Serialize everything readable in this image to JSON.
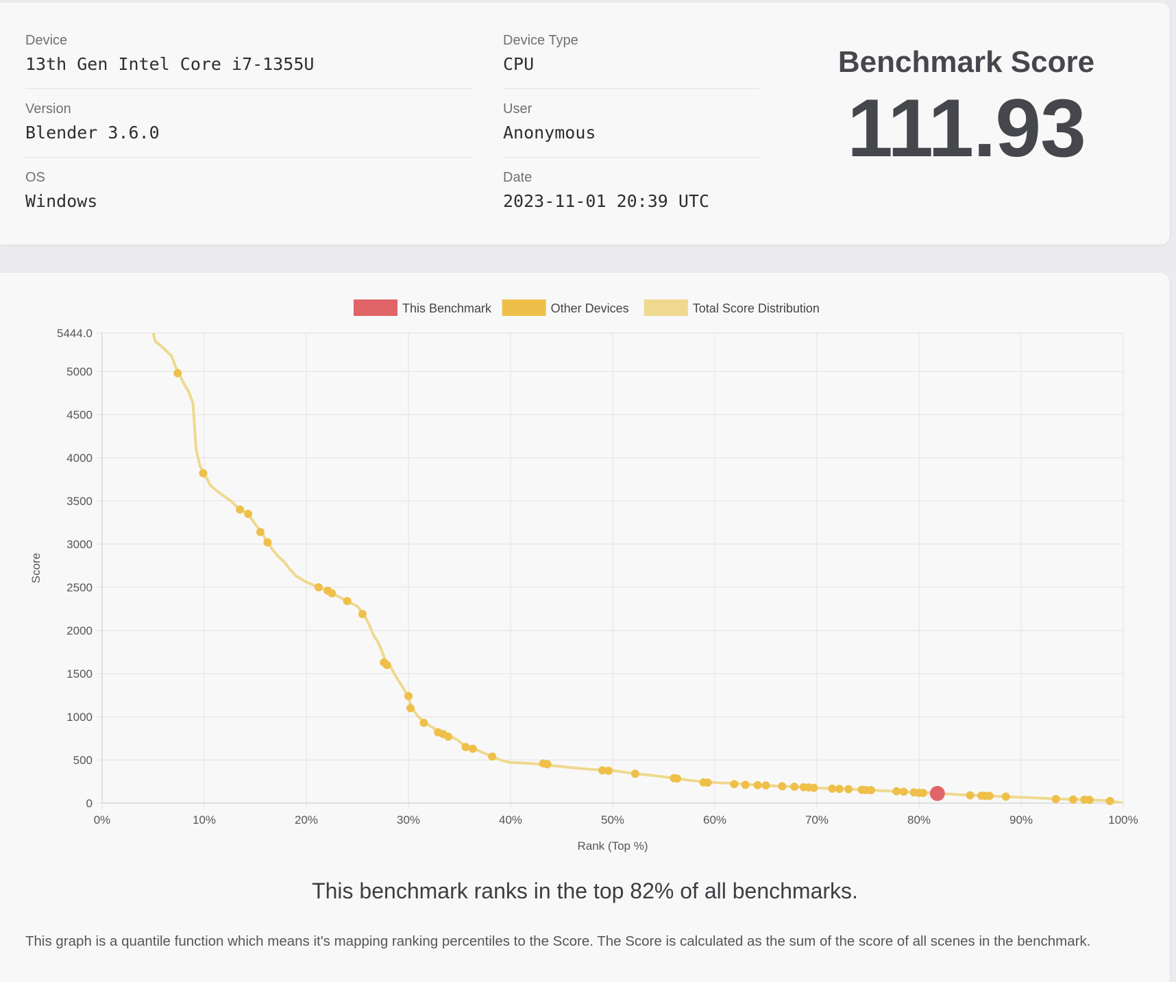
{
  "info": {
    "device_label": "Device",
    "device_value": "13th Gen Intel Core i7-1355U",
    "version_label": "Version",
    "version_value": "Blender 3.6.0",
    "os_label": "OS",
    "os_value": "Windows",
    "device_type_label": "Device Type",
    "device_type_value": "CPU",
    "user_label": "User",
    "user_value": "Anonymous",
    "date_label": "Date",
    "date_value": "2023-11-01 20:39 UTC"
  },
  "score": {
    "title": "Benchmark Score",
    "value": "111.93"
  },
  "summary": {
    "rank_sentence": "This benchmark ranks in the top 82% of all benchmarks.",
    "footnote": "This graph is a quantile function which means it's mapping ranking percentiles to the Score. The Score is calculated as the sum of the score of all scenes in the benchmark."
  },
  "colors": {
    "this_benchmark": "#e06468",
    "other_devices": "#eec04a",
    "distribution": "#efd98f",
    "grid": "#e2e2e2",
    "axis_text": "#555555"
  },
  "chart_data": {
    "type": "scatter",
    "xlabel": "Rank (Top %)",
    "ylabel": "Score",
    "xlim": [
      0,
      100
    ],
    "ylim": [
      0,
      5444.0
    ],
    "x_ticks": [
      "0%",
      "10%",
      "20%",
      "30%",
      "40%",
      "50%",
      "60%",
      "70%",
      "80%",
      "90%",
      "100%"
    ],
    "y_ticks": [
      "0",
      "500",
      "1000",
      "1500",
      "2000",
      "2500",
      "3000",
      "3500",
      "4000",
      "4500",
      "5000",
      "5444.0"
    ],
    "grid": true,
    "legend_position": "top-center",
    "legend": [
      "This Benchmark",
      "Other Devices",
      "Total Score Distribution"
    ],
    "series": [
      {
        "name": "Total Score Distribution",
        "kind": "line",
        "points": [
          [
            5.0,
            5444
          ],
          [
            5.2,
            5350
          ],
          [
            6.0,
            5270
          ],
          [
            6.8,
            5180
          ],
          [
            7.2,
            5050
          ],
          [
            7.5,
            4980
          ],
          [
            8.0,
            4860
          ],
          [
            8.5,
            4760
          ],
          [
            8.9,
            4630
          ],
          [
            9.2,
            4100
          ],
          [
            9.6,
            3900
          ],
          [
            10.0,
            3820
          ],
          [
            10.6,
            3680
          ],
          [
            11.2,
            3620
          ],
          [
            12.0,
            3550
          ],
          [
            12.6,
            3500
          ],
          [
            13.5,
            3400
          ],
          [
            14.3,
            3350
          ],
          [
            15.0,
            3230
          ],
          [
            15.6,
            3140
          ],
          [
            16.2,
            3020
          ],
          [
            16.8,
            2920
          ],
          [
            17.3,
            2850
          ],
          [
            17.8,
            2800
          ],
          [
            18.3,
            2720
          ],
          [
            19.0,
            2630
          ],
          [
            20.0,
            2560
          ],
          [
            21.2,
            2500
          ],
          [
            22.0,
            2460
          ],
          [
            22.5,
            2430
          ],
          [
            24.0,
            2340
          ],
          [
            25.0,
            2280
          ],
          [
            25.6,
            2190
          ],
          [
            26.1,
            2080
          ],
          [
            26.6,
            1940
          ],
          [
            27.0,
            1870
          ],
          [
            27.4,
            1760
          ],
          [
            27.8,
            1630
          ],
          [
            28.2,
            1590
          ],
          [
            28.7,
            1480
          ],
          [
            29.4,
            1350
          ],
          [
            30.0,
            1230
          ],
          [
            30.3,
            1110
          ],
          [
            30.9,
            1010
          ],
          [
            31.6,
            930
          ],
          [
            32.6,
            860
          ],
          [
            33.4,
            810
          ],
          [
            34.0,
            780
          ],
          [
            34.7,
            740
          ],
          [
            35.6,
            660
          ],
          [
            36.4,
            630
          ],
          [
            37.2,
            590
          ],
          [
            38.2,
            540
          ],
          [
            39.0,
            500
          ],
          [
            40.0,
            470
          ],
          [
            42.0,
            460
          ],
          [
            43.5,
            440
          ],
          [
            44.5,
            430
          ],
          [
            46.0,
            410
          ],
          [
            48.0,
            390
          ],
          [
            49.5,
            380
          ],
          [
            50.5,
            370
          ],
          [
            52.3,
            340
          ],
          [
            54.0,
            320
          ],
          [
            56.0,
            290
          ],
          [
            57.5,
            265
          ],
          [
            59.0,
            245
          ],
          [
            60.5,
            235
          ],
          [
            62.0,
            230
          ],
          [
            63.0,
            220
          ],
          [
            64.0,
            210
          ],
          [
            65.0,
            205
          ],
          [
            66.5,
            195
          ],
          [
            68.0,
            190
          ],
          [
            69.0,
            180
          ],
          [
            70.0,
            175
          ],
          [
            71.5,
            170
          ],
          [
            72.5,
            165
          ],
          [
            73.5,
            160
          ],
          [
            74.5,
            155
          ],
          [
            75.5,
            150
          ],
          [
            77.0,
            140
          ],
          [
            78.5,
            130
          ],
          [
            80.0,
            122
          ],
          [
            81.0,
            118
          ],
          [
            81.8,
            112
          ],
          [
            83.0,
            105
          ],
          [
            84.5,
            95
          ],
          [
            86.0,
            88
          ],
          [
            87.5,
            80
          ],
          [
            89.0,
            72
          ],
          [
            90.5,
            65
          ],
          [
            92.0,
            58
          ],
          [
            93.5,
            50
          ],
          [
            95.0,
            44
          ],
          [
            96.5,
            40
          ],
          [
            97.5,
            34
          ],
          [
            98.8,
            25
          ],
          [
            100.0,
            0
          ]
        ]
      },
      {
        "name": "Other Devices",
        "kind": "scatter",
        "points": [
          [
            7.4,
            4980
          ],
          [
            9.9,
            3820
          ],
          [
            13.5,
            3400
          ],
          [
            14.3,
            3350
          ],
          [
            15.5,
            3140
          ],
          [
            16.2,
            3020
          ],
          [
            21.2,
            2500
          ],
          [
            22.1,
            2460
          ],
          [
            22.5,
            2430
          ],
          [
            24.0,
            2340
          ],
          [
            25.5,
            2190
          ],
          [
            27.6,
            1630
          ],
          [
            27.9,
            1600
          ],
          [
            30.0,
            1240
          ],
          [
            30.2,
            1100
          ],
          [
            31.5,
            930
          ],
          [
            32.9,
            820
          ],
          [
            33.4,
            800
          ],
          [
            33.9,
            770
          ],
          [
            35.6,
            650
          ],
          [
            36.3,
            630
          ],
          [
            38.2,
            540
          ],
          [
            43.2,
            460
          ],
          [
            43.6,
            450
          ],
          [
            49.0,
            380
          ],
          [
            49.6,
            375
          ],
          [
            52.2,
            340
          ],
          [
            56.0,
            290
          ],
          [
            56.3,
            285
          ],
          [
            58.9,
            240
          ],
          [
            59.3,
            238
          ],
          [
            61.9,
            220
          ],
          [
            63.0,
            212
          ],
          [
            64.2,
            208
          ],
          [
            65.0,
            205
          ],
          [
            66.6,
            195
          ],
          [
            67.8,
            190
          ],
          [
            68.7,
            185
          ],
          [
            69.2,
            182
          ],
          [
            69.7,
            178
          ],
          [
            71.5,
            168
          ],
          [
            72.2,
            165
          ],
          [
            73.1,
            162
          ],
          [
            74.4,
            155
          ],
          [
            74.8,
            152
          ],
          [
            75.3,
            150
          ],
          [
            77.8,
            138
          ],
          [
            78.5,
            132
          ],
          [
            79.5,
            125
          ],
          [
            80.0,
            120
          ],
          [
            80.4,
            118
          ],
          [
            85.0,
            90
          ],
          [
            86.1,
            86
          ],
          [
            86.5,
            85
          ],
          [
            86.9,
            84
          ],
          [
            88.5,
            75
          ],
          [
            93.4,
            48
          ],
          [
            95.1,
            42
          ],
          [
            96.2,
            40
          ],
          [
            96.7,
            38
          ],
          [
            98.7,
            25
          ]
        ]
      },
      {
        "name": "This Benchmark",
        "kind": "scatter",
        "points": [
          [
            81.8,
            111.93
          ]
        ]
      }
    ]
  }
}
